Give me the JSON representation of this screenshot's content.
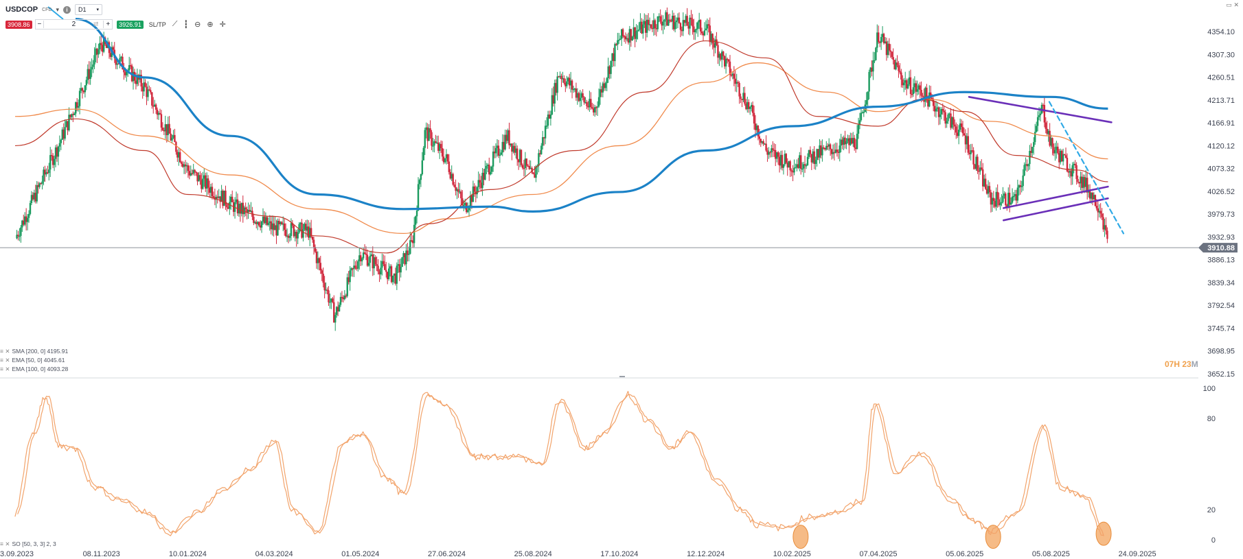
{
  "header": {
    "symbol": "USDCOP",
    "instrument_type": "CFD",
    "timeframe": "D1",
    "sell_price": "3908.86",
    "buy_price": "3926.91",
    "quantity": "2",
    "sltp_label": "SL/TP",
    "minus_label": "−",
    "plus_label": "+"
  },
  "indicators": {
    "sma200": "SMA [200, 0] 4195.91",
    "ema50": "EMA [50, 0] 4045.61",
    "ema100": "EMA [100, 0] 4093.28",
    "stoch": "SO [50, 3, 3] 2, 3"
  },
  "countdown": {
    "hours": "07",
    "h": "H",
    "minutes": "23",
    "m": "M"
  },
  "colors": {
    "up": "#1a9a5e",
    "down": "#d0253a",
    "sma200": "#1b82c7",
    "ema50": "#c0392b",
    "ema100": "#f08a4b",
    "channel": "#6a2fb8",
    "trend_dashed": "#2fa9e6",
    "stoch": "#f2a36a",
    "current_price_bg": "#6b7280"
  },
  "chart_data": [
    {
      "type": "candlestick",
      "title": "USDCOP D1",
      "price_axis": {
        "ticks": [
          "4354.10",
          "4307.30",
          "4260.51",
          "4213.71",
          "4166.91",
          "4120.12",
          "4073.32",
          "4026.52",
          "3979.73",
          "3932.93",
          "3886.13",
          "3839.34",
          "3792.54",
          "3745.74",
          "3698.95",
          "3652.15"
        ],
        "range": [
          3652.15,
          4354.1
        ]
      },
      "current_price": "3910.88",
      "x_axis": {
        "ticks": [
          "3.09.2023",
          "08.11.2023",
          "10.01.2024",
          "04.03.2024",
          "01.05.2024",
          "27.06.2024",
          "25.08.2024",
          "17.10.2024",
          "12.12.2024",
          "10.02.2025",
          "07.04.2025",
          "05.06.2025",
          "05.08.2025",
          "24.09.2025"
        ]
      },
      "price_path": [
        {
          "x": 0.0,
          "y": 3930
        },
        {
          "x": 0.5,
          "y": 4120
        },
        {
          "x": 1.0,
          "y": 4330
        },
        {
          "x": 1.5,
          "y": 4240
        },
        {
          "x": 2.0,
          "y": 4070
        },
        {
          "x": 2.5,
          "y": 4000
        },
        {
          "x": 3.0,
          "y": 3950
        },
        {
          "x": 3.4,
          "y": 3945
        },
        {
          "x": 3.7,
          "y": 3770
        },
        {
          "x": 4.0,
          "y": 3900
        },
        {
          "x": 4.4,
          "y": 3850
        },
        {
          "x": 4.6,
          "y": 3920
        },
        {
          "x": 4.75,
          "y": 4150
        },
        {
          "x": 5.0,
          "y": 4090
        },
        {
          "x": 5.2,
          "y": 3990
        },
        {
          "x": 5.7,
          "y": 4140
        },
        {
          "x": 6.0,
          "y": 4050
        },
        {
          "x": 6.3,
          "y": 4270
        },
        {
          "x": 6.7,
          "y": 4190
        },
        {
          "x": 7.0,
          "y": 4340
        },
        {
          "x": 7.5,
          "y": 4380
        },
        {
          "x": 8.0,
          "y": 4360
        },
        {
          "x": 8.2,
          "y": 4300
        },
        {
          "x": 8.5,
          "y": 4200
        },
        {
          "x": 8.7,
          "y": 4110
        },
        {
          "x": 9.0,
          "y": 4080
        },
        {
          "x": 9.4,
          "y": 4110
        },
        {
          "x": 9.75,
          "y": 4130
        },
        {
          "x": 10.0,
          "y": 4350
        },
        {
          "x": 10.3,
          "y": 4250
        },
        {
          "x": 10.5,
          "y": 4230
        },
        {
          "x": 11.0,
          "y": 4140
        },
        {
          "x": 11.3,
          "y": 4010
        },
        {
          "x": 11.6,
          "y": 4010
        },
        {
          "x": 11.9,
          "y": 4200
        },
        {
          "x": 12.0,
          "y": 4120
        },
        {
          "x": 12.4,
          "y": 4040
        },
        {
          "x": 12.58,
          "y": 3990
        },
        {
          "x": 12.66,
          "y": 3911
        }
      ],
      "sma200": [
        {
          "x": 0.7,
          "y": 4380
        },
        {
          "x": 1.5,
          "y": 4260
        },
        {
          "x": 2.5,
          "y": 4140
        },
        {
          "x": 3.5,
          "y": 4020
        },
        {
          "x": 4.5,
          "y": 3990
        },
        {
          "x": 5.5,
          "y": 3995
        },
        {
          "x": 6.0,
          "y": 3985
        },
        {
          "x": 7.0,
          "y": 4025
        },
        {
          "x": 8.0,
          "y": 4110
        },
        {
          "x": 9.0,
          "y": 4160
        },
        {
          "x": 10.0,
          "y": 4200
        },
        {
          "x": 11.0,
          "y": 4230
        },
        {
          "x": 12.0,
          "y": 4220
        },
        {
          "x": 12.66,
          "y": 4196
        }
      ],
      "ema50": [
        {
          "x": 0.0,
          "y": 4120
        },
        {
          "x": 0.7,
          "y": 4175
        },
        {
          "x": 1.5,
          "y": 4110
        },
        {
          "x": 2.0,
          "y": 4020
        },
        {
          "x": 3.0,
          "y": 3975
        },
        {
          "x": 3.5,
          "y": 3935
        },
        {
          "x": 4.3,
          "y": 3900
        },
        {
          "x": 4.8,
          "y": 3960
        },
        {
          "x": 5.5,
          "y": 4030
        },
        {
          "x": 6.5,
          "y": 4110
        },
        {
          "x": 7.3,
          "y": 4230
        },
        {
          "x": 8.0,
          "y": 4335
        },
        {
          "x": 8.7,
          "y": 4300
        },
        {
          "x": 9.3,
          "y": 4180
        },
        {
          "x": 10.0,
          "y": 4160
        },
        {
          "x": 10.5,
          "y": 4215
        },
        {
          "x": 11.0,
          "y": 4190
        },
        {
          "x": 11.6,
          "y": 4100
        },
        {
          "x": 12.3,
          "y": 4070
        },
        {
          "x": 12.66,
          "y": 4046
        }
      ],
      "ema100": [
        {
          "x": 0.0,
          "y": 4180
        },
        {
          "x": 0.7,
          "y": 4195
        },
        {
          "x": 1.5,
          "y": 4140
        },
        {
          "x": 2.5,
          "y": 4060
        },
        {
          "x": 3.5,
          "y": 3990
        },
        {
          "x": 4.5,
          "y": 3940
        },
        {
          "x": 5.0,
          "y": 3970
        },
        {
          "x": 6.0,
          "y": 4020
        },
        {
          "x": 7.0,
          "y": 4120
        },
        {
          "x": 8.0,
          "y": 4250
        },
        {
          "x": 8.6,
          "y": 4290
        },
        {
          "x": 9.4,
          "y": 4230
        },
        {
          "x": 10.0,
          "y": 4190
        },
        {
          "x": 10.6,
          "y": 4215
        },
        {
          "x": 11.3,
          "y": 4170
        },
        {
          "x": 12.0,
          "y": 4140
        },
        {
          "x": 12.66,
          "y": 4093
        }
      ],
      "channel_upper": [
        {
          "x": 11.05,
          "y": 4220
        },
        {
          "x": 12.7,
          "y": 4168
        }
      ],
      "channel_lower_1": [
        {
          "x": 11.45,
          "y": 3992
        },
        {
          "x": 12.66,
          "y": 4036
        }
      ],
      "channel_lower_2": [
        {
          "x": 11.45,
          "y": 3967
        },
        {
          "x": 12.66,
          "y": 4012
        }
      ],
      "dashed_trendline": [
        {
          "x": 11.98,
          "y": 4210
        },
        {
          "x": 12.84,
          "y": 3940
        }
      ]
    },
    {
      "type": "line",
      "title": "SO [50, 3, 3]",
      "y_axis": {
        "ticks": [
          "100",
          "80",
          "20",
          "0"
        ],
        "range": [
          0,
          100
        ]
      },
      "series": [
        {
          "values": [
            {
              "x": 0.0,
              "y": 18
            },
            {
              "x": 0.2,
              "y": 70
            },
            {
              "x": 0.35,
              "y": 95
            },
            {
              "x": 0.5,
              "y": 62
            },
            {
              "x": 0.7,
              "y": 60
            },
            {
              "x": 0.9,
              "y": 35
            },
            {
              "x": 1.2,
              "y": 27
            },
            {
              "x": 1.5,
              "y": 18
            },
            {
              "x": 1.8,
              "y": 5
            },
            {
              "x": 2.1,
              "y": 18
            },
            {
              "x": 2.4,
              "y": 33
            },
            {
              "x": 2.7,
              "y": 46
            },
            {
              "x": 3.0,
              "y": 65
            },
            {
              "x": 3.2,
              "y": 20
            },
            {
              "x": 3.5,
              "y": 5
            },
            {
              "x": 3.8,
              "y": 65
            },
            {
              "x": 4.0,
              "y": 70
            },
            {
              "x": 4.3,
              "y": 40
            },
            {
              "x": 4.5,
              "y": 30
            },
            {
              "x": 4.75,
              "y": 95
            },
            {
              "x": 5.0,
              "y": 88
            },
            {
              "x": 5.3,
              "y": 55
            },
            {
              "x": 5.5,
              "y": 55
            },
            {
              "x": 5.8,
              "y": 55
            },
            {
              "x": 6.1,
              "y": 50
            },
            {
              "x": 6.3,
              "y": 92
            },
            {
              "x": 6.6,
              "y": 60
            },
            {
              "x": 6.8,
              "y": 70
            },
            {
              "x": 7.1,
              "y": 96
            },
            {
              "x": 7.3,
              "y": 80
            },
            {
              "x": 7.6,
              "y": 60
            },
            {
              "x": 7.8,
              "y": 72
            },
            {
              "x": 8.1,
              "y": 40
            },
            {
              "x": 8.4,
              "y": 20
            },
            {
              "x": 8.6,
              "y": 10
            },
            {
              "x": 8.9,
              "y": 8
            },
            {
              "x": 9.2,
              "y": 15
            },
            {
              "x": 9.5,
              "y": 18
            },
            {
              "x": 9.8,
              "y": 25
            },
            {
              "x": 9.95,
              "y": 90
            },
            {
              "x": 10.2,
              "y": 45
            },
            {
              "x": 10.5,
              "y": 57
            },
            {
              "x": 10.8,
              "y": 28
            },
            {
              "x": 11.1,
              "y": 12
            },
            {
              "x": 11.3,
              "y": 5
            },
            {
              "x": 11.6,
              "y": 18
            },
            {
              "x": 11.9,
              "y": 75
            },
            {
              "x": 12.1,
              "y": 35
            },
            {
              "x": 12.4,
              "y": 28
            },
            {
              "x": 12.6,
              "y": 3
            }
          ]
        }
      ],
      "highlights": [
        {
          "x": 9.1,
          "y": 2
        },
        {
          "x": 11.33,
          "y": 2
        },
        {
          "x": 12.61,
          "y": 4
        }
      ]
    }
  ]
}
